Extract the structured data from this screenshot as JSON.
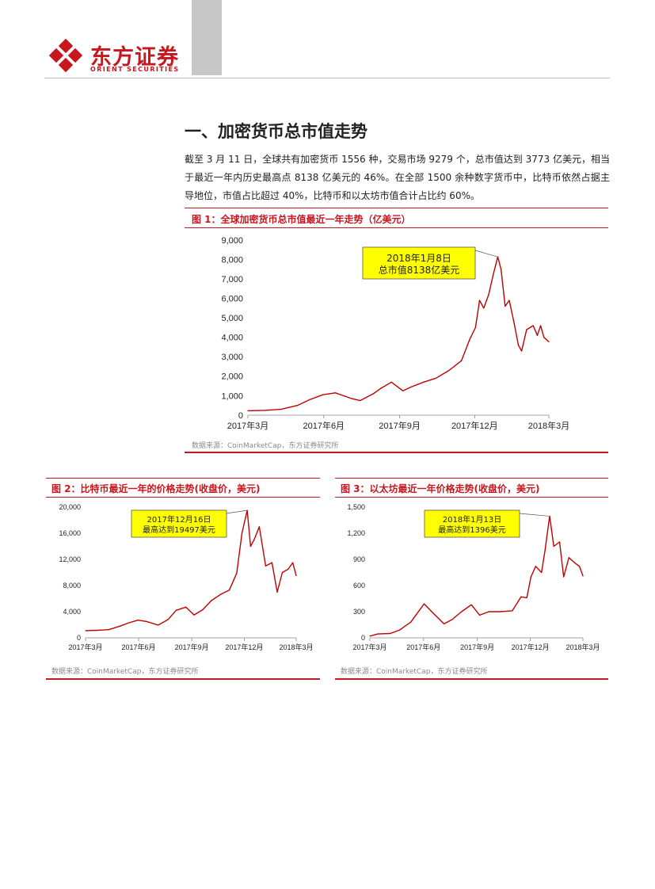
{
  "header": {
    "company_cn": "东方证券",
    "company_en": "ORIENT SECURITIES",
    "colors": {
      "brand_red": "#c8161d",
      "tab_grey": "#c7c7c7"
    }
  },
  "section": {
    "title": "一、加密货币总市值走势",
    "paragraph": "截至 3 月 11 日，全球共有加密货币 1556 种，交易市场 9279 个，总市值达到 3773 亿美元，相当于最近一年内历史最高点 8138 亿美元的 46%。在全部 1500 余种数字货币中，比特币依然占据主导地位，市值占比超过 40%，比特币和以太坊市值合计占比约 60%。"
  },
  "figures": {
    "fig1": {
      "title": "图 1：全球加密货币总市值最近一年走势（亿美元）",
      "source": "数据来源：CoinMarketCap，东方证券研究所",
      "callout": [
        "2018年1月8日",
        "总市值8138亿美元"
      ]
    },
    "fig2": {
      "title": "图 2：比特币最近一年的价格走势(收盘价，美元)",
      "source": "数据来源：CoinMarketCap，东方证券研究所",
      "callout": [
        "2017年12月16日",
        "最高达到19497美元"
      ]
    },
    "fig3": {
      "title": "图 3：以太坊最近一年价格走势(收盘价，美元)",
      "source": "数据来源：CoinMarketCap，东方证券研究所",
      "callout": [
        "2018年1月13日",
        "最高达到1396美元"
      ]
    }
  },
  "chart_data": [
    {
      "id": "fig1",
      "type": "line",
      "title": "图 1：全球加密货币总市值最近一年走势（亿美元）",
      "ylim": [
        0,
        9000
      ],
      "yticks": [
        "0",
        "1,000",
        "2,000",
        "3,000",
        "4,000",
        "5,000",
        "6,000",
        "7,000",
        "8,000",
        "9,000"
      ],
      "xticks": [
        "2017年3月",
        "2017年6月",
        "2017年9月",
        "2017年12月",
        "2018年3月"
      ],
      "grid": false,
      "line_color": "#c00000",
      "series": [
        {
          "x": [
            "2017-03-11",
            "2017-04-01",
            "2017-04-20",
            "2017-05-10",
            "2017-05-25",
            "2017-06-10",
            "2017-06-25",
            "2017-07-15",
            "2017-07-25",
            "2017-08-10",
            "2017-08-20",
            "2017-09-01",
            "2017-09-15",
            "2017-09-25",
            "2017-10-10",
            "2017-10-25",
            "2017-11-10",
            "2017-11-25",
            "2017-12-05",
            "2017-12-12",
            "2017-12-17",
            "2017-12-22",
            "2017-12-28",
            "2018-01-03",
            "2018-01-08",
            "2018-01-12",
            "2018-01-17",
            "2018-01-22",
            "2018-01-28",
            "2018-02-02",
            "2018-02-06",
            "2018-02-12",
            "2018-02-20",
            "2018-02-25",
            "2018-03-01",
            "2018-03-05",
            "2018-03-11"
          ],
          "y": [
            230,
            250,
            300,
            500,
            800,
            1050,
            1150,
            850,
            750,
            1100,
            1400,
            1700,
            1250,
            1450,
            1700,
            1900,
            2300,
            2800,
            3900,
            4500,
            5900,
            5500,
            6200,
            7300,
            8138,
            7500,
            5600,
            5900,
            4700,
            3600,
            3300,
            4400,
            4600,
            4100,
            4600,
            4000,
            3773
          ]
        }
      ]
    },
    {
      "id": "fig2",
      "type": "line",
      "title": "图 2：比特币最近一年的价格走势(收盘价，美元)",
      "ylim": [
        0,
        20000
      ],
      "yticks": [
        "0",
        "4,000",
        "8,000",
        "12,000",
        "16,000",
        "20,000"
      ],
      "xticks": [
        "2017年3月",
        "2017年6月",
        "2017年9月",
        "2017年12月",
        "2018年3月"
      ],
      "grid": false,
      "line_color": "#c00000",
      "series": [
        {
          "x": [
            "2017-03-11",
            "2017-04-01",
            "2017-04-20",
            "2017-05-10",
            "2017-05-25",
            "2017-06-10",
            "2017-06-25",
            "2017-07-15",
            "2017-08-01",
            "2017-08-15",
            "2017-09-01",
            "2017-09-15",
            "2017-09-30",
            "2017-10-15",
            "2017-11-01",
            "2017-11-15",
            "2017-11-28",
            "2017-12-07",
            "2017-12-16",
            "2017-12-22",
            "2017-12-28",
            "2018-01-06",
            "2018-01-17",
            "2018-01-28",
            "2018-02-06",
            "2018-02-15",
            "2018-02-25",
            "2018-03-05",
            "2018-03-11"
          ],
          "y": [
            1100,
            1150,
            1250,
            1800,
            2300,
            2700,
            2500,
            1950,
            2800,
            4200,
            4700,
            3500,
            4300,
            5700,
            6700,
            7300,
            9900,
            16000,
            19497,
            14000,
            15000,
            17000,
            11000,
            11500,
            7000,
            10000,
            10500,
            11500,
            9500
          ]
        }
      ]
    },
    {
      "id": "fig3",
      "type": "line",
      "title": "图 3：以太坊最近一年价格走势(收盘价，美元)",
      "ylim": [
        0,
        1500
      ],
      "yticks": [
        "0",
        "300",
        "600",
        "900",
        "1,200",
        "1,500"
      ],
      "xticks": [
        "2017年3月",
        "2017年6月",
        "2017年9月",
        "2017年12月",
        "2018年3月"
      ],
      "grid": false,
      "line_color": "#c00000",
      "series": [
        {
          "x": [
            "2017-03-11",
            "2017-03-25",
            "2017-04-15",
            "2017-05-01",
            "2017-05-20",
            "2017-06-12",
            "2017-06-25",
            "2017-07-16",
            "2017-07-30",
            "2017-08-15",
            "2017-09-01",
            "2017-09-15",
            "2017-10-01",
            "2017-10-20",
            "2017-11-10",
            "2017-11-25",
            "2017-12-05",
            "2017-12-12",
            "2017-12-20",
            "2017-12-30",
            "2018-01-05",
            "2018-01-13",
            "2018-01-20",
            "2018-01-30",
            "2018-02-06",
            "2018-02-15",
            "2018-02-25",
            "2018-03-05",
            "2018-03-11"
          ],
          "y": [
            20,
            45,
            50,
            90,
            180,
            390,
            300,
            160,
            210,
            300,
            380,
            260,
            300,
            300,
            310,
            470,
            460,
            700,
            820,
            750,
            1000,
            1396,
            1050,
            1100,
            700,
            920,
            860,
            820,
            710
          ]
        }
      ]
    }
  ]
}
